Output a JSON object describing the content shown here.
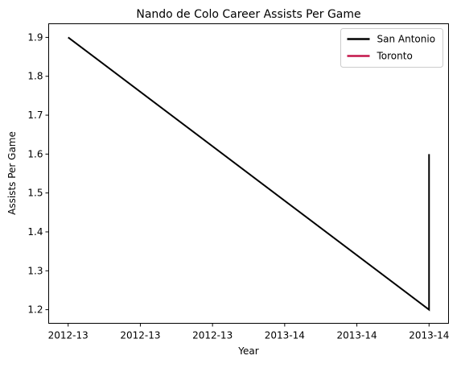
{
  "chart_data": {
    "type": "line",
    "title": "Nando de Colo Career Assists Per Game",
    "xlabel": "Year",
    "ylabel": "Assists Per Game",
    "x_tick_labels": [
      "2012-13",
      "2012-13",
      "2012-13",
      "2013-14",
      "2013-14",
      "2013-14"
    ],
    "x_tick_values": [
      0,
      1,
      2,
      3,
      4,
      5
    ],
    "xlim": [
      -0.27,
      5.27
    ],
    "y_ticks": [
      1.2,
      1.3,
      1.4,
      1.5,
      1.6,
      1.7,
      1.8,
      1.9
    ],
    "ylim": [
      1.165,
      1.935
    ],
    "grid": false,
    "legend_position": "top-right",
    "series": [
      {
        "name": "San Antonio",
        "color": "#000000",
        "points": [
          {
            "x": 0,
            "y": 1.9
          },
          {
            "x": 5,
            "y": 1.2
          },
          {
            "x": 5,
            "y": 1.6
          }
        ]
      },
      {
        "name": "Toronto",
        "color": "#c4154a",
        "points": []
      }
    ]
  }
}
